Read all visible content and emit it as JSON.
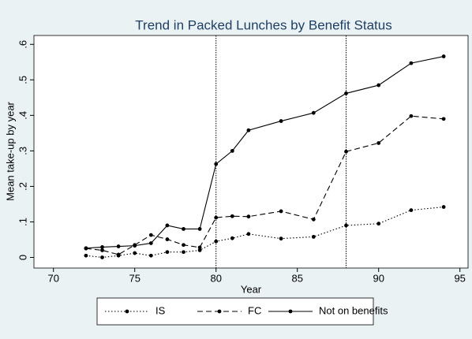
{
  "chart_data": {
    "type": "line",
    "title": "Trend in Packed Lunches by Benefit Status",
    "x_label": "Year",
    "y_label": "Mean take-up by year",
    "x": [
      72,
      73,
      74,
      75,
      76,
      77,
      78,
      79,
      80,
      81,
      82,
      84,
      86,
      88,
      90,
      92,
      94
    ],
    "series": [
      {
        "name": "IS",
        "color": "#000000",
        "style": "dotted",
        "values": [
          0.005,
          0.0,
          0.005,
          0.012,
          0.005,
          0.015,
          0.015,
          0.02,
          0.045,
          0.054,
          0.066,
          0.053,
          0.058,
          0.09,
          0.095,
          0.133,
          0.142
        ]
      },
      {
        "name": "FC",
        "color": "#000000",
        "style": "dashed",
        "values": [
          0.025,
          0.02,
          0.008,
          0.035,
          0.063,
          0.051,
          0.035,
          0.028,
          0.112,
          0.116,
          0.115,
          0.13,
          0.107,
          0.298,
          0.322,
          0.398,
          0.39
        ]
      },
      {
        "name": "Not on benefits",
        "color": "#000000",
        "style": "solid",
        "values": [
          0.026,
          0.029,
          0.031,
          0.033,
          0.04,
          0.09,
          0.08,
          0.08,
          0.263,
          0.3,
          0.358,
          0.384,
          0.407,
          0.462,
          0.485,
          0.547,
          0.566
        ]
      }
    ],
    "xlim": [
      68.8,
      95.5
    ],
    "xticks": [
      70,
      75,
      80,
      85,
      90,
      95
    ],
    "ylim": [
      -0.03,
      0.625
    ],
    "yticks": [
      0,
      {
        "value": 0.1,
        "label": ".1"
      },
      {
        "value": 0.2,
        "label": ".2"
      },
      {
        "value": 0.3,
        "label": ".3"
      },
      {
        "value": 0.4,
        "label": ".4"
      },
      {
        "value": 0.5,
        "label": ".5"
      },
      {
        "value": 0.6,
        "label": ".6"
      }
    ],
    "xlines": [
      80,
      88
    ],
    "grid": false,
    "legend": "bottom"
  }
}
